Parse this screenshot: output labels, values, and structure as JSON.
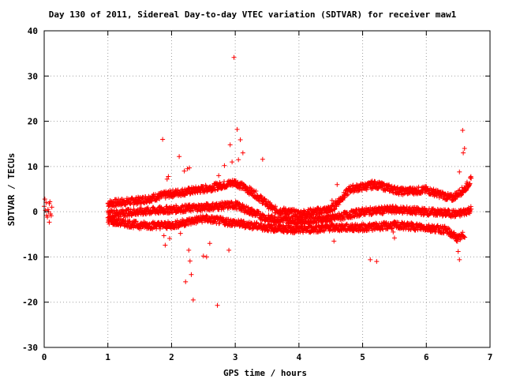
{
  "chart_data": {
    "type": "scatter",
    "title": "Day 130 of 2011, Sidereal Day-to-day VTEC variation (SDTVAR) for receiver maw1",
    "xlabel": "GPS time / hours",
    "ylabel": "SDTVAR / TECUs",
    "xlim": [
      0,
      7
    ],
    "ylim": [
      -30,
      40
    ],
    "xticks": [
      "0",
      "1",
      "2",
      "3",
      "4",
      "5",
      "6",
      "7"
    ],
    "yticks": [
      "-30",
      "-20",
      "-10",
      "0",
      "10",
      "20",
      "30",
      "40"
    ],
    "xtick_values": [
      0,
      1,
      2,
      3,
      4,
      5,
      6,
      7
    ],
    "ytick_values": [
      -30,
      -20,
      -10,
      0,
      10,
      20,
      30,
      40
    ],
    "grid": true,
    "marker": "+",
    "color": "#ff0000",
    "series": [
      {
        "values_xy": [
          [
            0.0,
            1.2
          ],
          [
            0.02,
            0.3
          ],
          [
            0.04,
            -0.8
          ],
          [
            0.06,
            0.5
          ],
          [
            0.08,
            1.8
          ],
          [
            0.1,
            -0.5
          ],
          [
            0.12,
            1.0
          ],
          [
            0.03,
            2.0
          ],
          [
            0.05,
            -1.2
          ],
          [
            0.07,
            0.0
          ],
          [
            0.09,
            2.2
          ],
          [
            0.11,
            -0.9
          ],
          [
            0.08,
            -2.3
          ],
          [
            0.01,
            2.8
          ],
          [
            1.86,
            16.0
          ],
          [
            2.12,
            12.2
          ],
          [
            2.2,
            9.0
          ],
          [
            2.25,
            9.5
          ],
          [
            2.28,
            9.7
          ],
          [
            1.93,
            7.2
          ],
          [
            1.95,
            7.8
          ],
          [
            2.74,
            8.0
          ],
          [
            2.83,
            10.2
          ],
          [
            2.92,
            14.8
          ],
          [
            2.98,
            34.1
          ],
          [
            3.03,
            18.2
          ],
          [
            3.08,
            15.9
          ],
          [
            3.05,
            11.5
          ],
          [
            2.95,
            11.0
          ],
          [
            3.43,
            11.6
          ],
          [
            3.12,
            13.0
          ],
          [
            1.88,
            -5.3
          ],
          [
            1.9,
            -7.4
          ],
          [
            1.97,
            -5.9
          ],
          [
            2.22,
            -15.5
          ],
          [
            2.27,
            -8.5
          ],
          [
            2.31,
            -13.9
          ],
          [
            2.29,
            -10.9
          ],
          [
            2.34,
            -19.5
          ],
          [
            2.6,
            -7.0
          ],
          [
            2.72,
            -20.7
          ],
          [
            2.9,
            -8.5
          ],
          [
            2.5,
            -9.8
          ],
          [
            2.55,
            -10.0
          ],
          [
            4.55,
            -6.5
          ],
          [
            5.12,
            -10.6
          ],
          [
            5.22,
            -11.0
          ],
          [
            5.5,
            -5.8
          ],
          [
            5.48,
            -4.5
          ],
          [
            6.52,
            -10.6
          ],
          [
            6.5,
            -8.8
          ],
          [
            6.47,
            -5.5
          ],
          [
            6.52,
            8.8
          ],
          [
            6.58,
            13.0
          ],
          [
            6.6,
            14.0
          ],
          [
            6.57,
            18.0
          ],
          [
            4.6,
            6.0
          ],
          [
            4.52,
            2.5
          ],
          [
            5.15,
            6.8
          ],
          [
            1.7,
            0.8
          ],
          [
            2.14,
            -4.8
          ]
        ],
        "band_upper": [
          [
            1.0,
            1.8
          ],
          [
            1.5,
            2.5
          ],
          [
            2.0,
            4.0
          ],
          [
            2.5,
            5.0
          ],
          [
            3.0,
            6.5
          ],
          [
            3.3,
            4.0
          ],
          [
            3.6,
            0.5
          ],
          [
            4.0,
            -0.5
          ],
          [
            4.5,
            0.5
          ],
          [
            4.8,
            5.0
          ],
          [
            5.2,
            6.0
          ],
          [
            5.6,
            4.5
          ],
          [
            6.0,
            4.8
          ],
          [
            6.4,
            3.0
          ],
          [
            6.6,
            5.0
          ],
          [
            6.7,
            7.0
          ]
        ],
        "band_middle": [
          [
            1.0,
            -0.5
          ],
          [
            1.5,
            0.0
          ],
          [
            2.0,
            0.5
          ],
          [
            2.5,
            1.0
          ],
          [
            3.0,
            1.5
          ],
          [
            3.5,
            -1.5
          ],
          [
            4.0,
            -2.0
          ],
          [
            4.5,
            -1.5
          ],
          [
            5.0,
            0.0
          ],
          [
            5.5,
            0.5
          ],
          [
            6.0,
            0.0
          ],
          [
            6.5,
            -0.5
          ],
          [
            6.7,
            0.5
          ]
        ],
        "band_lower": [
          [
            1.0,
            -2.0
          ],
          [
            1.5,
            -3.0
          ],
          [
            2.0,
            -3.0
          ],
          [
            2.5,
            -1.5
          ],
          [
            3.0,
            -2.5
          ],
          [
            3.5,
            -3.5
          ],
          [
            4.0,
            -4.0
          ],
          [
            4.5,
            -3.5
          ],
          [
            5.0,
            -3.5
          ],
          [
            5.5,
            -3.0
          ],
          [
            6.0,
            -3.5
          ],
          [
            6.3,
            -4.0
          ],
          [
            6.5,
            -6.0
          ],
          [
            6.6,
            -5.0
          ]
        ]
      }
    ]
  }
}
